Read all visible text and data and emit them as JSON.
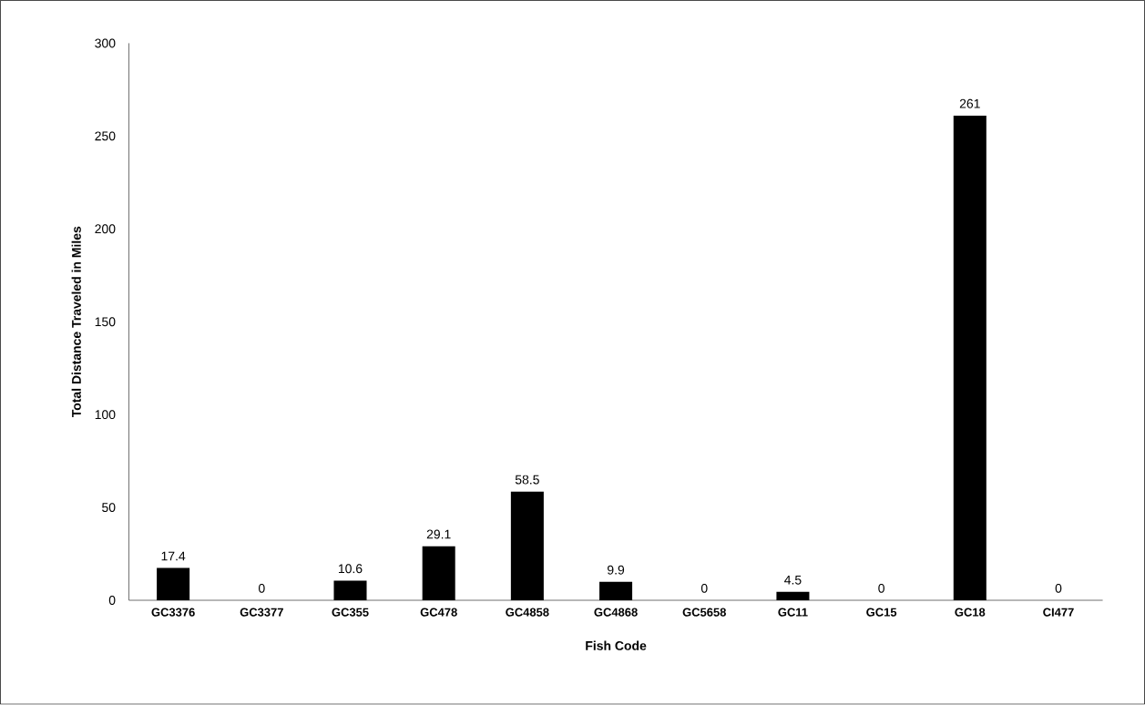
{
  "chart_data": {
    "type": "bar",
    "xlabel": "Fish Code",
    "ylabel": "Total Distance Traveled in Miles",
    "categories": [
      "GC3376",
      "GC3377",
      "GC355",
      "GC478",
      "GC4858",
      "GC4868",
      "GC5658",
      "GC11",
      "GC15",
      "GC18",
      "CI477"
    ],
    "values": [
      17.4,
      0,
      10.6,
      29.1,
      58.5,
      9.9,
      0,
      4.5,
      0,
      261,
      0
    ],
    "color": "#000000",
    "ylim": [
      0,
      300
    ],
    "yticks": [
      0,
      50,
      100,
      150,
      200,
      250,
      300
    ],
    "data_labels": true
  }
}
